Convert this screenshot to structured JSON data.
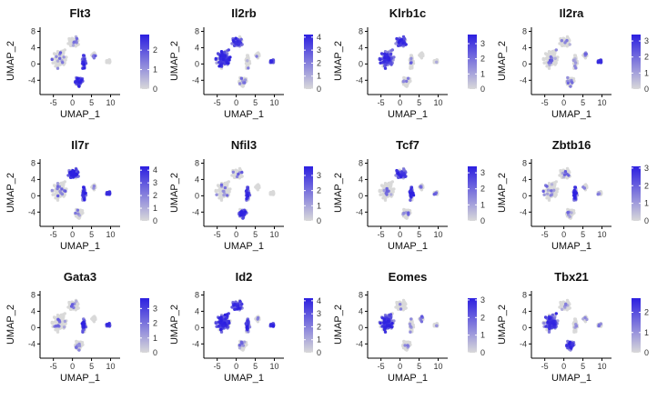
{
  "chart_data": {
    "type": "scatter",
    "layout": "4 columns x 3 rows feature-plot grid",
    "xlabel": "UMAP_1",
    "ylabel": "UMAP_2",
    "x_ticks": [
      -5,
      0,
      5,
      10
    ],
    "y_ticks": [
      -4,
      0,
      4,
      8
    ],
    "xlim": [
      -8.5,
      12.5
    ],
    "ylim": [
      -7.5,
      9.0
    ],
    "color_scale": {
      "low": "#d9d9d9",
      "high": "#2c1fe0"
    },
    "panels": [
      {
        "gene": "Flt3",
        "legend_ticks": [
          0,
          1,
          2
        ],
        "max": 2.8,
        "hotspots": [
          "lower cluster",
          "central stalk"
        ]
      },
      {
        "gene": "Il2rb",
        "legend_ticks": [
          0,
          1,
          2,
          3,
          4
        ],
        "max": 4.2,
        "hotspots": [
          "left cluster",
          "upper cluster",
          "right cluster"
        ]
      },
      {
        "gene": "Klrb1c",
        "legend_ticks": [
          0,
          1,
          2,
          3
        ],
        "max": 3.6,
        "hotspots": [
          "left cluster",
          "upper cluster"
        ]
      },
      {
        "gene": "Il2ra",
        "legend_ticks": [
          0,
          1,
          2,
          3
        ],
        "max": 3.4,
        "hotspots": [
          "right cluster"
        ]
      },
      {
        "gene": "Il7r",
        "legend_ticks": [
          0,
          1,
          2,
          3,
          4
        ],
        "max": 4.3,
        "hotspots": [
          "upper cluster",
          "right cluster",
          "central stalk"
        ]
      },
      {
        "gene": "Nfil3",
        "legend_ticks": [
          0,
          1,
          2,
          3
        ],
        "max": 3.6,
        "hotspots": [
          "lower cluster",
          "central stalk"
        ]
      },
      {
        "gene": "Tcf7",
        "legend_ticks": [
          0,
          1,
          2,
          3
        ],
        "max": 3.4,
        "hotspots": [
          "central stalk",
          "upper cluster"
        ]
      },
      {
        "gene": "Zbtb16",
        "legend_ticks": [
          0,
          1,
          2,
          3
        ],
        "max": 3.1,
        "hotspots": [
          "central stalk"
        ]
      },
      {
        "gene": "Gata3",
        "legend_ticks": [
          0,
          1,
          2,
          3
        ],
        "max": 3.7,
        "hotspots": [
          "right cluster",
          "central stalk"
        ]
      },
      {
        "gene": "Id2",
        "legend_ticks": [
          0,
          1,
          2,
          3,
          4
        ],
        "max": 4.2,
        "hotspots": [
          "left cluster",
          "upper cluster",
          "right cluster",
          "central stalk"
        ]
      },
      {
        "gene": "Eomes",
        "legend_ticks": [
          0,
          1,
          2,
          3
        ],
        "max": 3.1,
        "hotspots": [
          "left cluster"
        ]
      },
      {
        "gene": "Tbx21",
        "legend_ticks": [
          0,
          1,
          2
        ],
        "max": 2.7,
        "hotspots": [
          "left cluster",
          "lower cluster"
        ]
      }
    ]
  }
}
